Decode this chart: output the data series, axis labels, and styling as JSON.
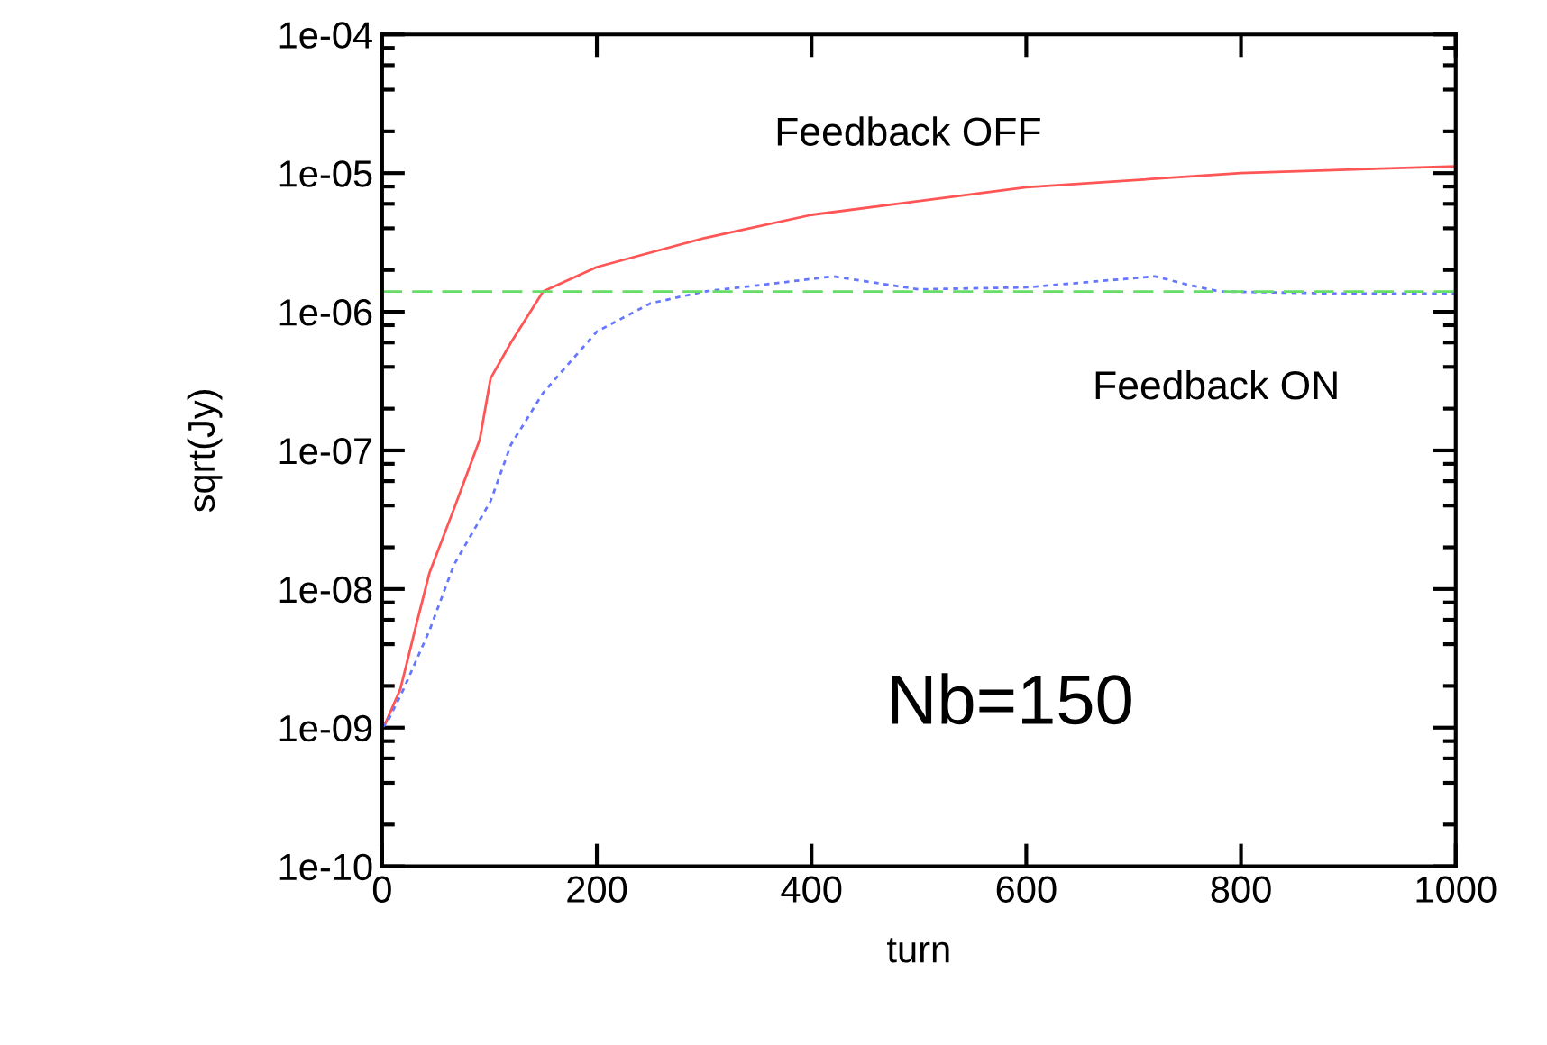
{
  "chart_data": {
    "type": "line",
    "xlabel": "turn",
    "ylabel": "sqrt(Jy)",
    "log": "y",
    "xlim": [
      0,
      1000
    ],
    "xticks": [
      0,
      200,
      400,
      600,
      800,
      1000
    ],
    "ylim": [
      1e-10,
      0.0001
    ],
    "yticks": [
      {
        "value": 1e-10,
        "label": "1e-10"
      },
      {
        "value": 1e-09,
        "label": "1e-09"
      },
      {
        "value": 1e-08,
        "label": "1e-08"
      },
      {
        "value": 1e-07,
        "label": "1e-07"
      },
      {
        "value": 1e-06,
        "label": "1e-06"
      },
      {
        "value": 1e-05,
        "label": "1e-05"
      },
      {
        "value": 0.0001,
        "label": "1e-04"
      }
    ],
    "grid": false,
    "marker": "none",
    "series": [
      {
        "color": "#ff5555",
        "line_style": "solid",
        "x": [
          0,
          3,
          17,
          32,
          44,
          67,
          91,
          101,
          120,
          150,
          200,
          300,
          400,
          600,
          800,
          1000
        ],
        "values": [
          1e-09,
          1.07e-09,
          1.9e-09,
          5.6e-09,
          1.3e-08,
          3.8e-08,
          1.2e-07,
          3.3e-07,
          6e-07,
          1.4e-06,
          2.1e-06,
          3.4e-06,
          5e-06,
          7.9e-06,
          1e-05,
          1.12e-05
        ]
      },
      {
        "color": "#6677ff",
        "line_style": "dotted",
        "x": [
          0,
          5,
          20,
          44,
          67,
          101,
          120,
          150,
          200,
          250,
          300,
          350,
          420,
          500,
          600,
          720,
          750,
          780,
          900,
          1000
        ],
        "values": [
          1e-09,
          1.1e-09,
          1.9e-09,
          5e-09,
          1.5e-08,
          4.3e-08,
          1.1e-07,
          2.6e-07,
          7.2e-07,
          1.15e-06,
          1.4e-06,
          1.55e-06,
          1.8e-06,
          1.45e-06,
          1.5e-06,
          1.8e-06,
          1.57e-06,
          1.4e-06,
          1.35e-06,
          1.35e-06
        ]
      }
    ],
    "ref_lines": [
      {
        "axis": "y",
        "value": 1.4e-06,
        "color": "#66dd66",
        "line_style": "dashed"
      }
    ],
    "annotations": [
      "Feedback OFF",
      "Feedback ON",
      "Nb=150"
    ]
  }
}
